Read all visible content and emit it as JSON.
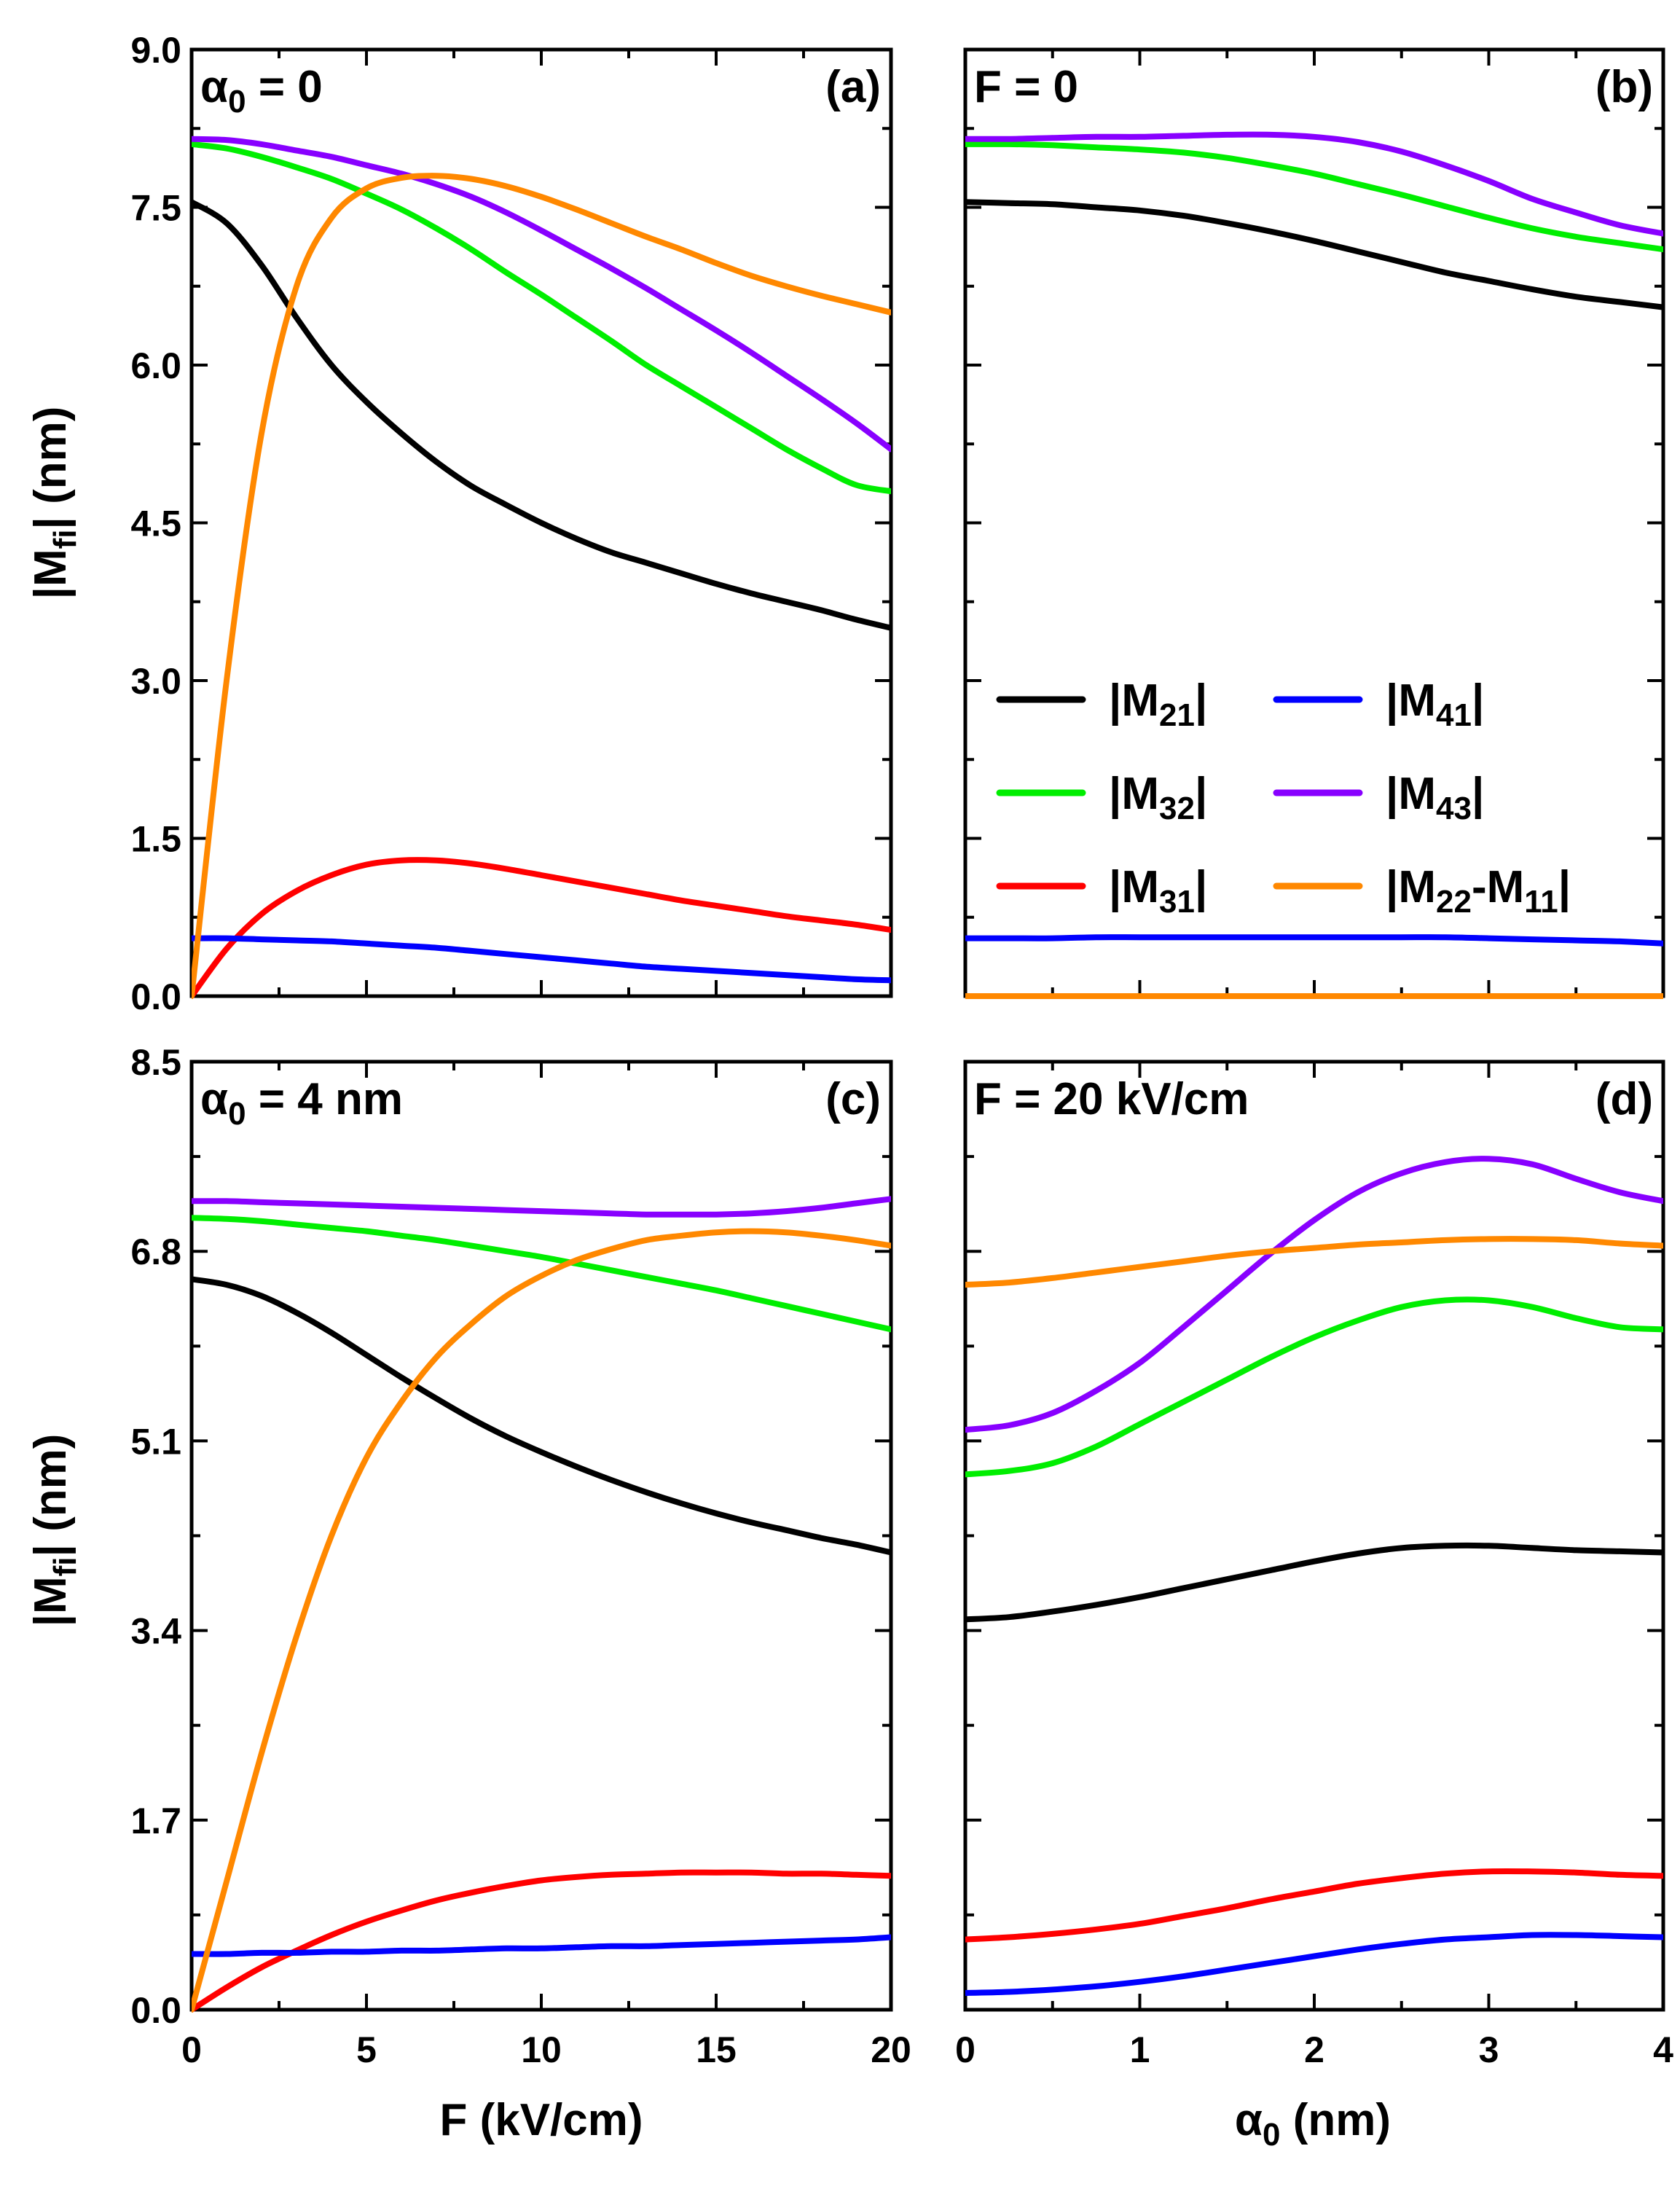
{
  "colors": {
    "M21": "#000000",
    "M32": "#00ee00",
    "M31": "#ff0000",
    "M41": "#0000ff",
    "M43": "#8800ff",
    "M22_M11": "#ff8800"
  },
  "legend": {
    "entries": [
      {
        "key": "M21",
        "pre": "|M",
        "sub": "21",
        "post": "|"
      },
      {
        "key": "M41",
        "pre": "|M",
        "sub": "41",
        "post": "|"
      },
      {
        "key": "M32",
        "pre": "|M",
        "sub": "32",
        "post": "|"
      },
      {
        "key": "M43",
        "pre": "|M",
        "sub": "43",
        "post": "|"
      },
      {
        "key": "M31",
        "pre": "|M",
        "sub": "31",
        "post": "|"
      },
      {
        "key": "M22_M11",
        "pre": "|M",
        "sub": "22",
        "mid": "-M",
        "sub2": "11",
        "post": "|"
      }
    ]
  },
  "axis_titles": {
    "ylabel_main": "|M",
    "ylabel_sub": "fi",
    "ylabel_unit": "| (nm)",
    "xlabel_left": "F (kV/cm)",
    "xlabel_right_sym": "α",
    "xlabel_right_sub": "0",
    "xlabel_right_unit": " (nm)"
  },
  "chart_data": [
    {
      "id": "a",
      "type": "line",
      "tag": "(a)",
      "condition_sym": "α",
      "condition_sub": "0",
      "condition_val": " = 0",
      "xlabel": "F (kV/cm)",
      "ylabel": "|Mfi| (nm)",
      "xlim": [
        0,
        20
      ],
      "ylim": [
        0,
        9.0
      ],
      "xticks": [
        0,
        5,
        10,
        15,
        20
      ],
      "yticks": [
        "0.0",
        "1.5",
        "3.0",
        "4.5",
        "6.0",
        "7.5",
        "9.0"
      ],
      "x": [
        0,
        1,
        2,
        3,
        4,
        5,
        6,
        7,
        8,
        9,
        10,
        11,
        12,
        13,
        14,
        15,
        16,
        17,
        18,
        19,
        20
      ],
      "series": [
        {
          "name": "|M21|",
          "key": "M21",
          "values": [
            7.55,
            7.35,
            6.95,
            6.45,
            6.0,
            5.65,
            5.35,
            5.08,
            4.85,
            4.67,
            4.5,
            4.35,
            4.22,
            4.12,
            4.02,
            3.92,
            3.83,
            3.75,
            3.67,
            3.58,
            3.5
          ]
        },
        {
          "name": "|M32|",
          "key": "M32",
          "values": [
            8.1,
            8.06,
            7.98,
            7.88,
            7.77,
            7.63,
            7.48,
            7.3,
            7.1,
            6.88,
            6.67,
            6.45,
            6.23,
            6.0,
            5.8,
            5.6,
            5.4,
            5.2,
            5.02,
            4.86,
            4.8
          ]
        },
        {
          "name": "|M43|",
          "key": "M43",
          "values": [
            8.15,
            8.14,
            8.1,
            8.04,
            7.98,
            7.9,
            7.82,
            7.72,
            7.6,
            7.45,
            7.28,
            7.1,
            6.92,
            6.73,
            6.53,
            6.33,
            6.12,
            5.9,
            5.68,
            5.45,
            5.2
          ]
        },
        {
          "name": "|M31|",
          "key": "M31",
          "values": [
            0.0,
            0.45,
            0.78,
            1.0,
            1.15,
            1.25,
            1.29,
            1.29,
            1.26,
            1.21,
            1.15,
            1.09,
            1.03,
            0.97,
            0.91,
            0.86,
            0.81,
            0.76,
            0.72,
            0.68,
            0.63
          ]
        },
        {
          "name": "|M41|",
          "key": "M41",
          "values": [
            0.55,
            0.55,
            0.54,
            0.53,
            0.52,
            0.5,
            0.48,
            0.46,
            0.43,
            0.4,
            0.37,
            0.34,
            0.31,
            0.28,
            0.26,
            0.24,
            0.22,
            0.2,
            0.18,
            0.16,
            0.15
          ]
        },
        {
          "name": "|M22-M11|",
          "key": "M22_M11",
          "values": [
            0.0,
            3.0,
            5.35,
            6.75,
            7.4,
            7.68,
            7.78,
            7.8,
            7.77,
            7.7,
            7.6,
            7.48,
            7.35,
            7.22,
            7.1,
            6.97,
            6.85,
            6.75,
            6.66,
            6.58,
            6.5
          ]
        }
      ]
    },
    {
      "id": "b",
      "type": "line",
      "tag": "(b)",
      "condition_text": "F = 0",
      "xlabel": "α0 (nm)",
      "ylabel": "|Mfi| (nm)",
      "xlim": [
        0,
        4
      ],
      "ylim": [
        0,
        9.0
      ],
      "xticks": [
        0,
        1,
        2,
        3,
        4
      ],
      "yticks": [
        "0.0",
        "1.5",
        "3.0",
        "4.5",
        "6.0",
        "7.5",
        "9.0"
      ],
      "x": [
        0,
        0.25,
        0.5,
        0.75,
        1.0,
        1.25,
        1.5,
        1.75,
        2.0,
        2.25,
        2.5,
        2.75,
        3.0,
        3.25,
        3.5,
        3.75,
        4.0
      ],
      "series": [
        {
          "name": "|M21|",
          "key": "M21",
          "values": [
            7.55,
            7.54,
            7.53,
            7.5,
            7.47,
            7.42,
            7.35,
            7.27,
            7.18,
            7.08,
            6.98,
            6.88,
            6.8,
            6.72,
            6.65,
            6.6,
            6.55
          ]
        },
        {
          "name": "|M32|",
          "key": "M32",
          "values": [
            8.1,
            8.1,
            8.09,
            8.07,
            8.05,
            8.02,
            7.97,
            7.9,
            7.82,
            7.72,
            7.62,
            7.51,
            7.4,
            7.3,
            7.22,
            7.16,
            7.1
          ]
        },
        {
          "name": "|M43|",
          "key": "M43",
          "values": [
            8.15,
            8.15,
            8.16,
            8.17,
            8.17,
            8.18,
            8.19,
            8.19,
            8.17,
            8.12,
            8.03,
            7.9,
            7.75,
            7.58,
            7.45,
            7.33,
            7.25
          ]
        },
        {
          "name": "|M31|",
          "key": "M31",
          "values": [
            0.0,
            0.0,
            0.0,
            0.0,
            0.0,
            0.0,
            0.0,
            0.0,
            0.0,
            0.0,
            0.0,
            0.0,
            0.0,
            0.0,
            0.0,
            0.0,
            0.0
          ]
        },
        {
          "name": "|M41|",
          "key": "M41",
          "values": [
            0.55,
            0.55,
            0.55,
            0.56,
            0.56,
            0.56,
            0.56,
            0.56,
            0.56,
            0.56,
            0.56,
            0.56,
            0.55,
            0.54,
            0.53,
            0.52,
            0.5
          ]
        },
        {
          "name": "|M22-M11|",
          "key": "M22_M11",
          "values": [
            0.0,
            0.0,
            0.0,
            0.0,
            0.0,
            0.0,
            0.0,
            0.0,
            0.0,
            0.0,
            0.0,
            0.0,
            0.0,
            0.0,
            0.0,
            0.0,
            0.0
          ]
        }
      ]
    },
    {
      "id": "c",
      "type": "line",
      "tag": "(c)",
      "condition_sym": "α",
      "condition_sub": "0",
      "condition_val": " = 4 nm",
      "xlabel": "F (kV/cm)",
      "ylabel": "|Mfi| (nm)",
      "xlim": [
        0,
        20
      ],
      "ylim": [
        0,
        8.5
      ],
      "xticks": [
        0,
        5,
        10,
        15,
        20
      ],
      "yticks": [
        "0.0",
        "1.7",
        "3.4",
        "5.1",
        "6.8",
        "8.5"
      ],
      "x": [
        0,
        1,
        2,
        3,
        4,
        5,
        6,
        7,
        8,
        9,
        10,
        11,
        12,
        13,
        14,
        15,
        16,
        17,
        18,
        19,
        20
      ],
      "series": [
        {
          "name": "|M21|",
          "key": "M21",
          "values": [
            6.55,
            6.5,
            6.4,
            6.25,
            6.07,
            5.87,
            5.67,
            5.48,
            5.3,
            5.14,
            5.0,
            4.87,
            4.75,
            4.64,
            4.54,
            4.45,
            4.37,
            4.3,
            4.23,
            4.17,
            4.1
          ]
        },
        {
          "name": "|M32|",
          "key": "M32",
          "values": [
            7.1,
            7.09,
            7.07,
            7.04,
            7.01,
            6.98,
            6.94,
            6.9,
            6.85,
            6.8,
            6.75,
            6.69,
            6.63,
            6.57,
            6.51,
            6.45,
            6.38,
            6.31,
            6.24,
            6.17,
            6.1
          ]
        },
        {
          "name": "|M43|",
          "key": "M43",
          "values": [
            7.25,
            7.25,
            7.24,
            7.23,
            7.22,
            7.21,
            7.2,
            7.19,
            7.18,
            7.17,
            7.16,
            7.15,
            7.14,
            7.13,
            7.13,
            7.13,
            7.14,
            7.16,
            7.19,
            7.23,
            7.27
          ]
        },
        {
          "name": "|M31|",
          "key": "M31",
          "values": [
            0.0,
            0.2,
            0.38,
            0.53,
            0.67,
            0.79,
            0.89,
            0.98,
            1.05,
            1.11,
            1.16,
            1.19,
            1.21,
            1.22,
            1.23,
            1.23,
            1.23,
            1.22,
            1.22,
            1.21,
            1.2
          ]
        },
        {
          "name": "|M41|",
          "key": "M41",
          "values": [
            0.5,
            0.5,
            0.51,
            0.51,
            0.52,
            0.52,
            0.53,
            0.53,
            0.54,
            0.55,
            0.55,
            0.56,
            0.57,
            0.57,
            0.58,
            0.59,
            0.6,
            0.61,
            0.62,
            0.63,
            0.65
          ]
        },
        {
          "name": "|M22-M11|",
          "key": "M22_M11",
          "values": [
            0.0,
            1.15,
            2.3,
            3.35,
            4.25,
            4.95,
            5.45,
            5.85,
            6.15,
            6.4,
            6.58,
            6.72,
            6.82,
            6.9,
            6.94,
            6.97,
            6.98,
            6.97,
            6.94,
            6.9,
            6.85
          ]
        }
      ]
    },
    {
      "id": "d",
      "type": "line",
      "tag": "(d)",
      "condition_text": "F = 20 kV/cm",
      "xlabel": "α0 (nm)",
      "ylabel": "|Mfi| (nm)",
      "xlim": [
        0,
        4
      ],
      "ylim": [
        0,
        8.5
      ],
      "xticks": [
        0,
        1,
        2,
        3,
        4
      ],
      "yticks": [
        "0.0",
        "1.7",
        "3.4",
        "5.1",
        "6.8",
        "8.5"
      ],
      "x": [
        0,
        0.25,
        0.5,
        0.75,
        1.0,
        1.25,
        1.5,
        1.75,
        2.0,
        2.25,
        2.5,
        2.75,
        3.0,
        3.25,
        3.5,
        3.75,
        4.0
      ],
      "series": [
        {
          "name": "|M21|",
          "key": "M21",
          "values": [
            3.5,
            3.52,
            3.57,
            3.63,
            3.7,
            3.78,
            3.86,
            3.94,
            4.02,
            4.09,
            4.14,
            4.16,
            4.16,
            4.14,
            4.12,
            4.11,
            4.1
          ]
        },
        {
          "name": "|M32|",
          "key": "M32",
          "values": [
            4.8,
            4.83,
            4.9,
            5.05,
            5.25,
            5.45,
            5.65,
            5.85,
            6.03,
            6.18,
            6.3,
            6.36,
            6.36,
            6.3,
            6.2,
            6.12,
            6.1
          ]
        },
        {
          "name": "|M43|",
          "key": "M43",
          "values": [
            5.2,
            5.24,
            5.35,
            5.55,
            5.8,
            6.12,
            6.45,
            6.78,
            7.08,
            7.33,
            7.5,
            7.6,
            7.63,
            7.58,
            7.45,
            7.33,
            7.25
          ]
        },
        {
          "name": "|M31|",
          "key": "M31",
          "values": [
            0.63,
            0.65,
            0.68,
            0.72,
            0.77,
            0.84,
            0.91,
            0.99,
            1.06,
            1.13,
            1.18,
            1.22,
            1.24,
            1.24,
            1.23,
            1.21,
            1.2
          ]
        },
        {
          "name": "|M41|",
          "key": "M41",
          "values": [
            0.15,
            0.16,
            0.18,
            0.21,
            0.25,
            0.3,
            0.36,
            0.42,
            0.48,
            0.54,
            0.59,
            0.63,
            0.65,
            0.67,
            0.67,
            0.66,
            0.65
          ]
        },
        {
          "name": "|M22-M11|",
          "key": "M22_M11",
          "values": [
            6.5,
            6.52,
            6.56,
            6.61,
            6.66,
            6.71,
            6.76,
            6.8,
            6.83,
            6.86,
            6.88,
            6.9,
            6.91,
            6.91,
            6.9,
            6.87,
            6.85
          ]
        }
      ]
    }
  ]
}
